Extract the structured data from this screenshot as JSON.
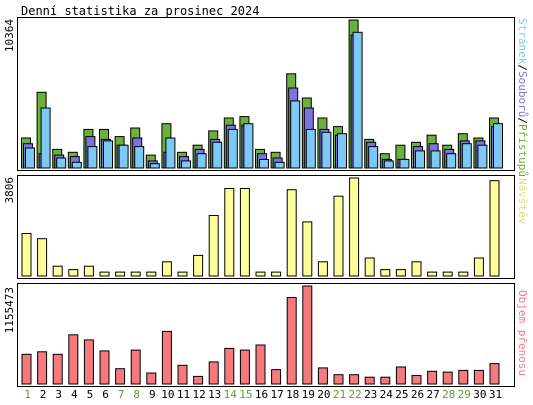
{
  "title": "Denní statistika za prosinec 2024",
  "colors": {
    "background": "#ffffff",
    "border": "#000000",
    "hits": "#6ab03a",
    "files": "#7b74e0",
    "pages": "#7ec8f5",
    "visits": "#ffff99",
    "kbytes": "#f47a80",
    "day_weekday": "#000000",
    "day_weekend": "#5a9e2a"
  },
  "chart_data": [
    {
      "type": "bar",
      "name": "hits-files-pages",
      "ymax_label": "10364",
      "ylim": [
        0,
        10364
      ],
      "legend": {
        "pages": "Stránek",
        "sep1": "/",
        "files": "Souborů",
        "sep2": "/",
        "hits": "Přístupů"
      },
      "categories": [
        "1",
        "2",
        "3",
        "4",
        "5",
        "6",
        "7",
        "8",
        "9",
        "10",
        "11",
        "12",
        "13",
        "14",
        "15",
        "16",
        "17",
        "18",
        "19",
        "20",
        "21",
        "22",
        "23",
        "24",
        "25",
        "26",
        "27",
        "28",
        "29",
        "30",
        "31"
      ],
      "weekend": [
        true,
        false,
        false,
        false,
        false,
        false,
        true,
        true,
        false,
        false,
        false,
        false,
        false,
        true,
        true,
        false,
        false,
        false,
        false,
        false,
        true,
        true,
        false,
        false,
        false,
        false,
        false,
        true,
        true,
        false,
        false
      ],
      "series": [
        {
          "name": "Přístupů",
          "values": [
            2100,
            5300,
            1300,
            1100,
            2700,
            2700,
            2200,
            2800,
            900,
            3100,
            1100,
            1600,
            2600,
            3500,
            3600,
            1300,
            1100,
            6600,
            4900,
            3500,
            2900,
            10364,
            2000,
            1000,
            1600,
            1800,
            2300,
            1600,
            2400,
            2100,
            3500
          ]
        },
        {
          "name": "Souborů",
          "values": [
            1700,
            1000,
            900,
            800,
            2200,
            2000,
            1600,
            2100,
            500,
            1100,
            800,
            1300,
            2000,
            3000,
            3000,
            1000,
            700,
            5600,
            4200,
            2700,
            2300,
            9300,
            1800,
            600,
            600,
            1500,
            1700,
            1300,
            1900,
            1900,
            2900
          ]
        },
        {
          "name": "Stránek",
          "values": [
            1400,
            4200,
            700,
            400,
            1500,
            1900,
            1600,
            1500,
            300,
            2100,
            500,
            1000,
            1800,
            2700,
            3100,
            600,
            400,
            4700,
            2700,
            2500,
            2400,
            9500,
            1500,
            500,
            600,
            1200,
            1200,
            1000,
            1700,
            1600,
            3100
          ]
        }
      ]
    },
    {
      "type": "bar",
      "name": "visits",
      "ymax_label": "3806",
      "ylim": [
        0,
        3806
      ],
      "legend": {
        "visits": "Návštěv"
      },
      "series": [
        {
          "name": "Návštěv",
          "values": [
            1650,
            1450,
            380,
            250,
            380,
            150,
            150,
            150,
            150,
            550,
            150,
            800,
            2350,
            3400,
            3400,
            150,
            150,
            3350,
            2100,
            550,
            3100,
            3806,
            700,
            250,
            250,
            550,
            150,
            150,
            150,
            700,
            3700
          ]
        }
      ]
    },
    {
      "type": "bar",
      "name": "kbytes",
      "ymax_label": "1155473",
      "ylim": [
        0,
        1155473
      ],
      "legend": {
        "kbytes": "Objem přenosu"
      },
      "series": [
        {
          "name": "Objem přenosu",
          "values": [
            350000,
            380000,
            350000,
            580000,
            520000,
            390000,
            180000,
            400000,
            130000,
            620000,
            220000,
            90000,
            260000,
            420000,
            400000,
            460000,
            170000,
            1020000,
            1155473,
            190000,
            110000,
            110000,
            80000,
            80000,
            200000,
            100000,
            150000,
            140000,
            160000,
            160000,
            240000
          ]
        }
      ]
    }
  ]
}
